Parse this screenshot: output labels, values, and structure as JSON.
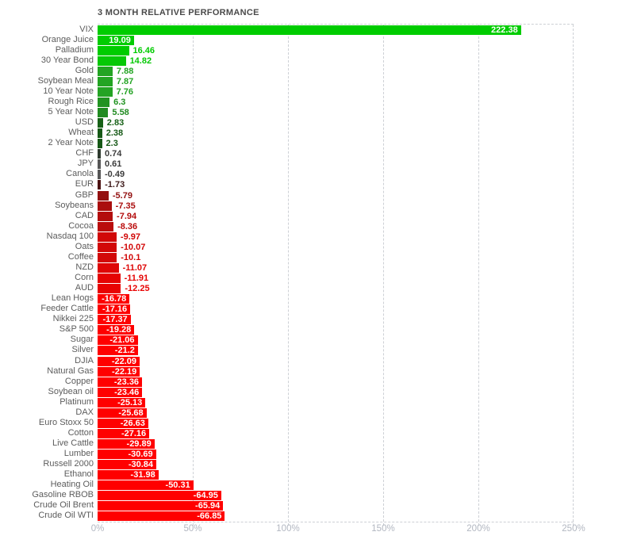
{
  "title": "3 MONTH RELATIVE PERFORMANCE",
  "colors": {
    "background": "#ffffff",
    "grid": "#cdd0d5",
    "axis_text": "#b2b7c1",
    "category_text": "#5c5c5c",
    "title_text": "#4a4a4a",
    "value_inside_text": "#ffffff",
    "positive_max": "#00cc00",
    "negative_max": "#ff0000"
  },
  "chart_data": {
    "type": "bar",
    "orientation": "horizontal",
    "title": "3 MONTH RELATIVE PERFORMANCE",
    "xlabel": "",
    "ylabel": "",
    "grid": "dashed-vertical",
    "x_axis": {
      "min": 0,
      "max": 250,
      "ticks": [
        "0%",
        "50%",
        "100%",
        "150%",
        "200%",
        "250%"
      ]
    },
    "encoding_note": "bar length = absolute value of 3-month % change; green = positive, red = negative, darker = closer to zero",
    "items": [
      {
        "label": "VIX",
        "value": 222.38,
        "display": "222.38",
        "color": "#00cc00",
        "value_inside": true
      },
      {
        "label": "Orange Juice",
        "value": 19.09,
        "display": "19.09",
        "color": "#00cc00",
        "value_inside": true
      },
      {
        "label": "Palladium",
        "value": 16.46,
        "display": "16.46",
        "color": "#00cc00",
        "value_inside": false
      },
      {
        "label": "30 Year Bond",
        "value": 14.82,
        "display": "14.82",
        "color": "#06c806",
        "value_inside": false
      },
      {
        "label": "Gold",
        "value": 7.88,
        "display": "7.88",
        "color": "#23a423",
        "value_inside": false
      },
      {
        "label": "Soybean Meal",
        "value": 7.87,
        "display": "7.87",
        "color": "#23a423",
        "value_inside": false
      },
      {
        "label": "10 Year Note",
        "value": 7.76,
        "display": "7.76",
        "color": "#24a324",
        "value_inside": false
      },
      {
        "label": "Rough Rice",
        "value": 6.3,
        "display": "6.3",
        "color": "#219321",
        "value_inside": false
      },
      {
        "label": "5 Year Note",
        "value": 5.58,
        "display": "5.58",
        "color": "#208b20",
        "value_inside": false
      },
      {
        "label": "USD",
        "value": 2.83,
        "display": "2.83",
        "color": "#176117",
        "value_inside": false
      },
      {
        "label": "Wheat",
        "value": 2.38,
        "display": "2.38",
        "color": "#165916",
        "value_inside": false
      },
      {
        "label": "2 Year Note",
        "value": 2.3,
        "display": "2.3",
        "color": "#165816",
        "value_inside": false
      },
      {
        "label": "CHF",
        "value": 0.74,
        "display": "0.74",
        "color": "#2e3a2e",
        "value_color": "#3c3c3c",
        "value_inside": false
      },
      {
        "label": "JPY",
        "value": 0.61,
        "display": "0.61",
        "color": "#565656",
        "value_color": "#3c3c3c",
        "value_inside": false
      },
      {
        "label": "Canola",
        "value": -0.49,
        "display": "-0.49",
        "color": "#565656",
        "value_color": "#3c3c3c",
        "value_inside": false
      },
      {
        "label": "EUR",
        "value": -1.73,
        "display": "-1.73",
        "color": "#4c1212",
        "value_color": "#3f1b1b",
        "value_inside": false
      },
      {
        "label": "GBP",
        "value": -5.79,
        "display": "-5.79",
        "color": "#931111",
        "value_inside": false
      },
      {
        "label": "Soybeans",
        "value": -7.35,
        "display": "-7.35",
        "color": "#aa0e0e",
        "value_inside": false
      },
      {
        "label": "CAD",
        "value": -7.94,
        "display": "-7.94",
        "color": "#b30d0d",
        "value_inside": false
      },
      {
        "label": "Cocoa",
        "value": -8.36,
        "display": "-8.36",
        "color": "#ba0c0c",
        "value_inside": false
      },
      {
        "label": "Nasdaq 100",
        "value": -9.97,
        "display": "-9.97",
        "color": "#d10808",
        "value_inside": false
      },
      {
        "label": "Oats",
        "value": -10.07,
        "display": "-10.07",
        "color": "#d20808",
        "value_inside": false
      },
      {
        "label": "Coffee",
        "value": -10.1,
        "display": "-10.1",
        "color": "#d20808",
        "value_inside": false
      },
      {
        "label": "NZD",
        "value": -11.07,
        "display": "-11.07",
        "color": "#de0606",
        "value_inside": false
      },
      {
        "label": "Corn",
        "value": -11.91,
        "display": "-11.91",
        "color": "#e50404",
        "value_inside": false
      },
      {
        "label": "AUD",
        "value": -12.25,
        "display": "-12.25",
        "color": "#e80303",
        "value_inside": false
      },
      {
        "label": "Lean Hogs",
        "value": -16.78,
        "display": "-16.78",
        "color": "#fc0000",
        "value_inside": true
      },
      {
        "label": "Feeder Cattle",
        "value": -17.16,
        "display": "-17.16",
        "color": "#fd0000",
        "value_inside": true
      },
      {
        "label": "Nikkei 225",
        "value": -17.37,
        "display": "-17.37",
        "color": "#fd0000",
        "value_inside": true
      },
      {
        "label": "S&P 500",
        "value": -19.28,
        "display": "-19.28",
        "color": "#fe0000",
        "value_inside": true
      },
      {
        "label": "Sugar",
        "value": -21.06,
        "display": "-21.06",
        "color": "#ff0000",
        "value_inside": true
      },
      {
        "label": "Silver",
        "value": -21.2,
        "display": "-21.2",
        "color": "#ff0000",
        "value_inside": true
      },
      {
        "label": "DJIA",
        "value": -22.09,
        "display": "-22.09",
        "color": "#ff0000",
        "value_inside": true
      },
      {
        "label": "Natural Gas",
        "value": -22.19,
        "display": "-22.19",
        "color": "#ff0000",
        "value_inside": true
      },
      {
        "label": "Copper",
        "value": -23.36,
        "display": "-23.36",
        "color": "#ff0000",
        "value_inside": true
      },
      {
        "label": "Soybean oil",
        "value": -23.46,
        "display": "-23.46",
        "color": "#ff0000",
        "value_inside": true
      },
      {
        "label": "Platinum",
        "value": -25.13,
        "display": "-25.13",
        "color": "#ff0000",
        "value_inside": true
      },
      {
        "label": "DAX",
        "value": -25.68,
        "display": "-25.68",
        "color": "#ff0000",
        "value_inside": true
      },
      {
        "label": "Euro Stoxx 50",
        "value": -26.63,
        "display": "-26.63",
        "color": "#ff0000",
        "value_inside": true
      },
      {
        "label": "Cotton",
        "value": -27.16,
        "display": "-27.16",
        "color": "#ff0000",
        "value_inside": true
      },
      {
        "label": "Live Cattle",
        "value": -29.89,
        "display": "-29.89",
        "color": "#ff0000",
        "value_inside": true
      },
      {
        "label": "Lumber",
        "value": -30.69,
        "display": "-30.69",
        "color": "#ff0000",
        "value_inside": true
      },
      {
        "label": "Russell 2000",
        "value": -30.84,
        "display": "-30.84",
        "color": "#ff0000",
        "value_inside": true
      },
      {
        "label": "Ethanol",
        "value": -31.98,
        "display": "-31.98",
        "color": "#ff0000",
        "value_inside": true
      },
      {
        "label": "Heating Oil",
        "value": -50.31,
        "display": "-50.31",
        "color": "#ff0000",
        "value_inside": true
      },
      {
        "label": "Gasoline RBOB",
        "value": -64.95,
        "display": "-64.95",
        "color": "#ff0000",
        "value_inside": true
      },
      {
        "label": "Crude Oil Brent",
        "value": -65.94,
        "display": "-65.94",
        "color": "#ff0000",
        "value_inside": true
      },
      {
        "label": "Crude Oil WTI",
        "value": -66.85,
        "display": "-66.85",
        "color": "#ff0000",
        "value_inside": true
      }
    ]
  }
}
